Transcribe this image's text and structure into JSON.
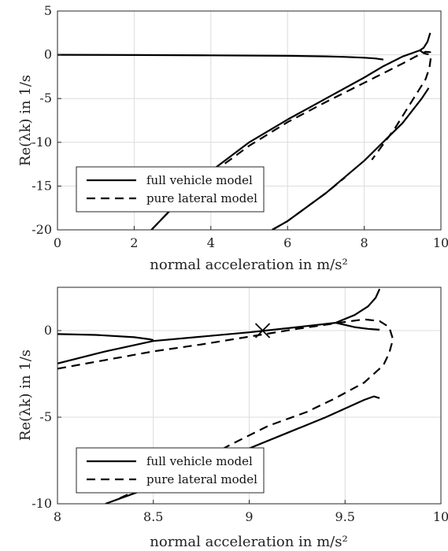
{
  "chart_data": [
    {
      "type": "line",
      "xlabel": "normal acceleration in m/s²",
      "ylabel": "Re(λk) in 1/s",
      "xlim": [
        0,
        10
      ],
      "ylim": [
        -20,
        5
      ],
      "xticks": [
        0,
        2,
        4,
        6,
        8,
        10
      ],
      "yticks": [
        -20,
        -15,
        -10,
        -5,
        0,
        5
      ],
      "grid": true,
      "legend_position": "bottom-left",
      "series": [
        {
          "name": "full vehicle model",
          "style": "solid",
          "curves": [
            {
              "x": [
                0,
                2,
                4,
                6,
                7,
                7.5,
                8,
                8.3,
                8.5
              ],
              "y": [
                0,
                -0.03,
                -0.06,
                -0.12,
                -0.18,
                -0.24,
                -0.33,
                -0.42,
                -0.55
              ]
            },
            {
              "x": [
                2.45,
                3,
                4,
                5,
                6,
                7,
                8,
                8.5,
                9,
                9.45
              ],
              "y": [
                -20,
                -17.5,
                -13.3,
                -10.0,
                -7.4,
                -5.0,
                -2.6,
                -1.3,
                -0.2,
                0.5
              ]
            },
            {
              "x": [
                9.45,
                9.55,
                9.65,
                9.72
              ],
              "y": [
                0.5,
                0.8,
                1.5,
                2.5
              ]
            },
            {
              "x": [
                9.45,
                9.55,
                9.62,
                9.68
              ],
              "y": [
                0.5,
                0.2,
                0.1,
                0.05
              ]
            },
            {
              "x": [
                5.6,
                6,
                7,
                8,
                9,
                9.5,
                9.62,
                9.68
              ],
              "y": [
                -20,
                -19.0,
                -15.8,
                -12.1,
                -7.8,
                -5.0,
                -4.2,
                -3.8
              ]
            }
          ]
        },
        {
          "name": "pure lateral model",
          "style": "dashed",
          "curves": [
            {
              "x": [
                2.45,
                3,
                4,
                5,
                6,
                7,
                8,
                8.5,
                9,
                9.3,
                9.6,
                9.72,
                9.73,
                9.7,
                9.6,
                9.4,
                9.2,
                9.0,
                8.8,
                8.5,
                8.2
              ],
              "y": [
                -20,
                -17.5,
                -13.6,
                -10.4,
                -7.7,
                -5.4,
                -3.2,
                -2.1,
                -1.0,
                -0.3,
                0.35,
                0.3,
                -0.5,
                -1.5,
                -2.8,
                -4.2,
                -5.6,
                -7.0,
                -8.4,
                -10.2,
                -12.0
              ]
            },
            {
              "x": [
                5.6,
                6,
                7,
                7.5
              ],
              "y": [
                -20,
                -19.0,
                -15.8,
                -14.0
              ]
            }
          ]
        }
      ]
    },
    {
      "type": "line",
      "xlabel": "normal acceleration in m/s²",
      "ylabel": "Re(λk) in 1/s",
      "xlim": [
        8,
        10
      ],
      "ylim": [
        -10,
        2.5
      ],
      "xticks": [
        8,
        8.5,
        9,
        9.5,
        10
      ],
      "yticks": [
        -10,
        -5,
        0
      ],
      "grid": true,
      "legend_position": "bottom-left",
      "marker": {
        "x": 9.07,
        "y": 0,
        "symbol": "x"
      },
      "series": [
        {
          "name": "full vehicle model",
          "style": "solid",
          "curves": [
            {
              "x": [
                8,
                8.2,
                8.4,
                8.48,
                8.5
              ],
              "y": [
                -0.2,
                -0.25,
                -0.38,
                -0.5,
                -0.55
              ]
            },
            {
              "x": [
                8,
                8.25,
                8.5,
                8.75,
                9.0,
                9.25,
                9.45
              ],
              "y": [
                -1.9,
                -1.2,
                -0.6,
                -0.35,
                -0.1,
                0.2,
                0.45
              ]
            },
            {
              "x": [
                9.45,
                9.55,
                9.62,
                9.66,
                9.68
              ],
              "y": [
                0.45,
                0.9,
                1.4,
                1.9,
                2.4
              ]
            },
            {
              "x": [
                9.45,
                9.55,
                9.62,
                9.68
              ],
              "y": [
                0.45,
                0.2,
                0.1,
                0.05
              ]
            },
            {
              "x": [
                8.25,
                8.4,
                8.6,
                8.8,
                9.0,
                9.2,
                9.4,
                9.6,
                9.65,
                9.68
              ],
              "y": [
                -10,
                -9.4,
                -8.6,
                -7.7,
                -6.8,
                -5.9,
                -5.0,
                -4.0,
                -3.8,
                -3.9
              ]
            }
          ]
        },
        {
          "name": "pure lateral model",
          "style": "dashed",
          "curves": [
            {
              "x": [
                8,
                8.25,
                8.5,
                8.75,
                9.0,
                9.25,
                9.5,
                9.6,
                9.68,
                9.73,
                9.75,
                9.73,
                9.7,
                9.6,
                9.45,
                9.3,
                9.1,
                8.9,
                8.7,
                8.5,
                8.3
              ],
              "y": [
                -2.2,
                -1.7,
                -1.2,
                -0.8,
                -0.35,
                0.1,
                0.5,
                0.65,
                0.55,
                0.2,
                -0.5,
                -1.3,
                -2.0,
                -3.0,
                -3.9,
                -4.7,
                -5.5,
                -6.6,
                -7.8,
                -8.8,
                -9.8
              ]
            }
          ]
        }
      ]
    }
  ]
}
